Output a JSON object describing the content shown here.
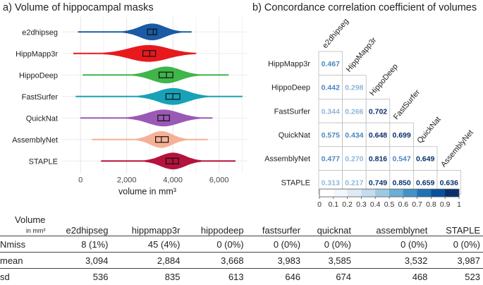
{
  "panel_a": {
    "title": "a) Volume of hippocampal masks",
    "chart_data": {
      "type": "violin",
      "xlabel": "volume in mm³",
      "xlim": [
        -800,
        7200
      ],
      "xticks": [
        0,
        2000,
        4000,
        6000
      ],
      "xtick_labels": [
        "0",
        "2,000",
        "4,000",
        "6,000"
      ],
      "groups": [
        {
          "name": "e2dhipseg",
          "color": "#1b5aa5",
          "min": -100,
          "max": 4800,
          "peak": 3100,
          "sd": 536,
          "mean": 3094,
          "median": 3150,
          "q1": 2900,
          "q3": 3300
        },
        {
          "name": "HippMapp3r",
          "color": "#e8191c",
          "min": -300,
          "max": 5000,
          "peak": 2950,
          "sd": 835,
          "mean": 2884,
          "median": 3000,
          "q1": 2700,
          "q3": 3250
        },
        {
          "name": "HippoDeep",
          "color": "#3fb54a",
          "min": 100,
          "max": 6400,
          "peak": 3700,
          "sd": 613,
          "mean": 3668,
          "median": 3720,
          "q1": 3400,
          "q3": 4000
        },
        {
          "name": "FastSurfer",
          "color": "#17a2b8",
          "min": -200,
          "max": 7000,
          "peak": 4000,
          "sd": 646,
          "mean": 3983,
          "median": 4000,
          "q1": 3700,
          "q3": 4300
        },
        {
          "name": "QuickNat",
          "color": "#9b59b6",
          "min": 0,
          "max": 5700,
          "peak": 3600,
          "sd": 674,
          "mean": 3585,
          "median": 3600,
          "q1": 3350,
          "q3": 3850
        },
        {
          "name": "AssemblyNet",
          "color": "#f6b097",
          "min": 500,
          "max": 5500,
          "peak": 3500,
          "sd": 468,
          "mean": 3532,
          "median": 3500,
          "q1": 3250,
          "q3": 3800
        },
        {
          "name": "STAPLE",
          "color": "#b5123d",
          "min": 900,
          "max": 6700,
          "peak": 4000,
          "sd": 523,
          "mean": 3987,
          "median": 4000,
          "q1": 3700,
          "q3": 4250
        }
      ]
    }
  },
  "panel_b": {
    "title": "b) Concordance correlation coefficient of volumes",
    "chart_data": {
      "type": "heatmap",
      "rows": [
        "HippMapp3r",
        "HippoDeep",
        "FastSurfer",
        "QuickNat",
        "AssemblyNet",
        "STAPLE"
      ],
      "cols": [
        "e2dhipseg",
        "HippMapp3r",
        "HippoDeep",
        "FastSurfer",
        "QuickNat",
        "AssemblyNet"
      ],
      "values": [
        [
          0.467,
          null,
          null,
          null,
          null,
          null
        ],
        [
          0.442,
          0.298,
          null,
          null,
          null,
          null
        ],
        [
          0.344,
          0.266,
          0.702,
          null,
          null,
          null
        ],
        [
          0.575,
          0.434,
          0.648,
          0.699,
          null,
          null
        ],
        [
          0.477,
          0.27,
          0.816,
          0.547,
          0.649,
          null
        ],
        [
          0.313,
          0.217,
          0.749,
          0.85,
          0.659,
          0.636
        ]
      ],
      "value_labels": [
        [
          "0.467"
        ],
        [
          "0.442",
          "0.298"
        ],
        [
          "0.344",
          "0.266",
          "0.702"
        ],
        [
          "0.575",
          "0.434",
          "0.648",
          "0.699"
        ],
        [
          "0.477",
          "0.270",
          "0.816",
          "0.547",
          "0.649"
        ],
        [
          "0.313",
          "0.217",
          "0.749",
          "0.850",
          "0.659",
          "0.636"
        ]
      ],
      "colorbar": {
        "range": [
          0,
          1
        ],
        "tick_labels": [
          "0",
          "0.1",
          "0.2",
          "0.3",
          "0.4",
          "0.5",
          "0.6",
          "0.7",
          "0.8",
          "0.9",
          "1"
        ],
        "colors": [
          "#ffffff",
          "#f2f7fd",
          "#deebf7",
          "#c6dbef",
          "#9ecae1",
          "#6baed6",
          "#4292c6",
          "#2171b5",
          "#08519c",
          "#08306b"
        ]
      }
    }
  },
  "stats_table": {
    "volume_label": "Volume",
    "unit_label": "in mm³",
    "columns": [
      "e2dhipseg",
      "hippmapp3r",
      "hippodeep",
      "fastsurfer",
      "quicknat",
      "assemblynet",
      "STAPLE"
    ],
    "rows": [
      {
        "label": "Nmiss",
        "values": [
          "8 (1%)",
          "45 (4%)",
          "0 (0%)",
          "0 (0%)",
          "0 (0%)",
          "0 (0%)",
          "0 (0%)"
        ]
      },
      {
        "label": "mean",
        "values": [
          "3,094",
          "2,884",
          "3,668",
          "3,983",
          "3,585",
          "3,532",
          "3,987"
        ]
      },
      {
        "label": "sd",
        "values": [
          "536",
          "835",
          "613",
          "646",
          "674",
          "468",
          "523"
        ]
      }
    ]
  }
}
